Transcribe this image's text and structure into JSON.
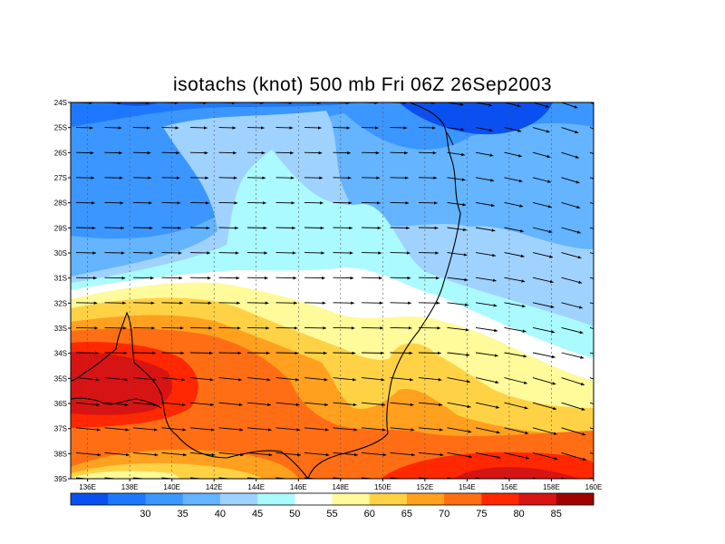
{
  "title": "isotachs (knot) 500 mb Fri 06Z 26Sep2003",
  "lat_labels": [
    "24S",
    "25S",
    "26S",
    "27S",
    "28S",
    "29S",
    "30S",
    "31S",
    "32S",
    "33S",
    "34S",
    "35S",
    "36S",
    "37S",
    "38S",
    "39S"
  ],
  "lon_labels": [
    "136E",
    "138E",
    "140E",
    "142E",
    "144E",
    "146E",
    "148E",
    "150E",
    "152E",
    "154E",
    "156E",
    "158E",
    "160E"
  ],
  "colorbar": {
    "colors": [
      "#0a50f0",
      "#1e78ff",
      "#3c96ff",
      "#64b4ff",
      "#a0d2ff",
      "#aafaff",
      "#ffffff",
      "#fffa9a",
      "#ffd246",
      "#ffa01e",
      "#ff6e14",
      "#ff2800",
      "#d71414",
      "#a00000"
    ],
    "labels": [
      "30",
      "35",
      "40",
      "45",
      "50",
      "55",
      "60",
      "65",
      "70",
      "75",
      "80",
      "85"
    ]
  },
  "colors": {
    "land_outline": "#000000",
    "grid": "#555555"
  }
}
